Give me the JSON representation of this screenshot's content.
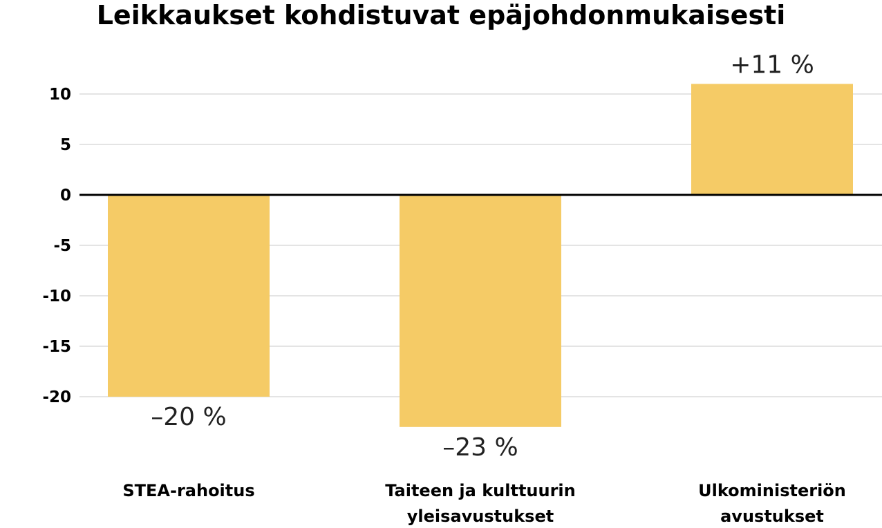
{
  "chart_data": {
    "type": "bar",
    "title": "Leikkaukset kohdistuvat epäjohdonmukaisesti",
    "categories": [
      [
        "STEA-rahoitus"
      ],
      [
        "Taiteen ja kulttuurin",
        "yleisavustukset"
      ],
      [
        "Ulkoministeriön",
        "avustukset"
      ]
    ],
    "values": [
      -20,
      -23,
      11
    ],
    "data_labels": [
      "–20 %",
      "–23 %",
      "+11 %"
    ],
    "y_ticks": [
      10,
      5,
      0,
      -5,
      -10,
      -15,
      -20
    ],
    "y_tick_labels": [
      "10",
      "5",
      "0",
      "-5",
      "-10",
      "-15",
      "-20"
    ],
    "ylim": [
      -23,
      11
    ],
    "grid": true,
    "colors": {
      "bar": "#F5CB66",
      "grid": "#c8c8c8",
      "zero_line": "#000000"
    }
  }
}
